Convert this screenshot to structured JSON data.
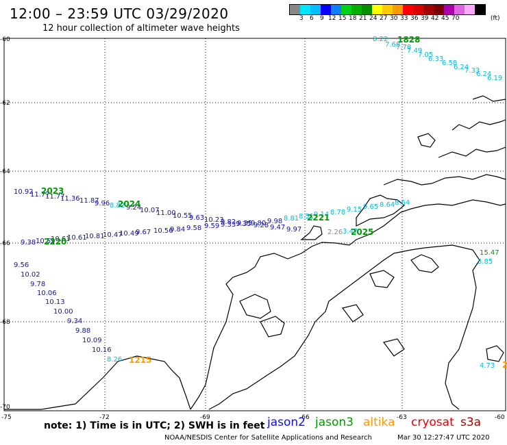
{
  "header": {
    "title": "12:00 – 23:59 UTC 03/29/2020",
    "subtitle": "12 hour collection of altimeter wave heights"
  },
  "legend": {
    "colors": [
      "#888888",
      "#00e5ff",
      "#00bfff",
      "#0000ff",
      "#0f7fff",
      "#00d11a",
      "#00b000",
      "#009000",
      "#ffff00",
      "#ffcc00",
      "#ff9900",
      "#ff0000",
      "#dd0000",
      "#a00000",
      "#7a0000",
      "#aa00aa",
      "#dd66dd",
      "#ffaaff",
      "#000000"
    ],
    "ticks": [
      "3",
      "6",
      "9",
      "12",
      "15",
      "18",
      "21",
      "24",
      "27",
      "30",
      "33",
      "36",
      "39",
      "42",
      "45",
      "70"
    ],
    "unit": "(ft)"
  },
  "axes": {
    "lat_labels": [
      "-60",
      "-62",
      "-64",
      "-66",
      "-68",
      "-70"
    ],
    "lon_labels": [
      "-75",
      "-72",
      "-69",
      "-66",
      "-63",
      "-60"
    ]
  },
  "footer": {
    "note": "note:  1) Time is in UTC;  2) SWH is in feet",
    "credit": "NOAA/NESDIS Center for Satellite Applications and Research",
    "timestamp": "Mar 30 12:27:47 UTC 2020"
  },
  "satellites": [
    {
      "name": "jason2",
      "color": "#1010ee"
    },
    {
      "name": "jason3",
      "color": "#009900"
    },
    {
      "name": "altika",
      "color": "#ff9900"
    },
    {
      "name": "cryosat",
      "color": "#ee0000"
    },
    {
      "name": "s3a",
      "color": "#aa0000"
    }
  ],
  "map": {
    "time_labels": [
      {
        "text": "1828",
        "color": "#009900"
      },
      {
        "text": "2023",
        "color": "#009900"
      },
      {
        "text": "2024",
        "color": "#009900"
      },
      {
        "text": "2221",
        "color": "#009900"
      },
      {
        "text": "2025",
        "color": "#009900"
      },
      {
        "text": "2220",
        "color": "#009900"
      },
      {
        "text": "1215",
        "color": "#ff9900"
      },
      {
        "text": "2",
        "color": "#ff9900"
      }
    ],
    "tracks": [
      {
        "name": "track-ne",
        "color": "#00bbdd",
        "values": [
          "8.22",
          "7.68",
          "7.78",
          "7.49",
          "7.05",
          "6.33",
          "6.58",
          "6.24",
          "7.33",
          "6.24",
          "6.19"
        ]
      },
      {
        "name": "track-upper",
        "color": "#1010aa",
        "values": [
          "10.92",
          "11.77",
          "11.77",
          "11.36",
          "11.87",
          "9.96",
          "8.82",
          "9.24",
          "10.07",
          "11.00",
          "10.55",
          "9.63",
          "10.23",
          "9.82",
          "9.35",
          "9.80",
          "9.98",
          "8.81",
          "8.51",
          "9.14",
          "8.78",
          "9.15",
          "9.65",
          "8.64",
          "8.64"
        ]
      },
      {
        "name": "track-lower",
        "color": "#1010aa",
        "values": [
          "9.38",
          "10.59",
          "10.61",
          "10.61",
          "10.81",
          "10.47",
          "10.49",
          "9.67",
          "10.56",
          "9.84",
          "9.58",
          "9.59",
          "9.33",
          "9.35",
          "9.28",
          "9.47",
          "9.97",
          "2.26",
          "3.47"
        ]
      },
      {
        "name": "track-sw",
        "color": "#1010aa",
        "values": [
          "9.56",
          "10.02",
          "9.78",
          "10.06",
          "10.13",
          "10.00",
          "9.34",
          "9.88",
          "10.09",
          "10.16",
          "8.26"
        ]
      },
      {
        "name": "track-east",
        "color": "#00bbdd",
        "values": [
          "15.47",
          "3.85",
          "4.73"
        ]
      }
    ]
  }
}
